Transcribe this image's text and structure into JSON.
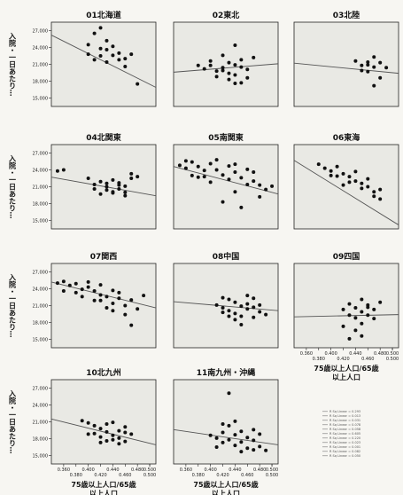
{
  "chart_data": {
    "type": "scatter",
    "layout": "small-multiples 3 columns x 4 rows",
    "ylabel": "入院・一日あたり…",
    "xlabel": [
      "75歳以上人口/65歳",
      "以上人口"
    ],
    "x_ticks_a": [
      "0.360",
      "0.400",
      "0.440",
      "0.480",
      "0.500"
    ],
    "x_ticks_b": [
      "0.380",
      "0.420",
      "0.460",
      "0.500"
    ],
    "y_ticks": [
      "27,000",
      "24,000",
      "21,000",
      "18,000",
      "15,000"
    ],
    "ylim": [
      13500,
      28500
    ],
    "xlim": [
      0.34,
      0.51
    ],
    "legend_lines": [
      "R Sq Linear = 0.293",
      "R Sq Linear = 0.013",
      "R Sq Linear = 0.031",
      "R Sq Linear = 0.078",
      "R Sq Linear = 0.058",
      "R Sq Linear = 0.605",
      "R Sq Linear = 0.220",
      "R Sq Linear = 0.023",
      "R Sq Linear = 0.001",
      "R Sq Linear = 0.082",
      "R Sq Linear = 0.050"
    ],
    "panels": [
      {
        "title": "01北海道",
        "line": [
          [
            0.34,
            26200
          ],
          [
            0.51,
            16900
          ]
        ],
        "points": [
          [
            0.4,
            24500
          ],
          [
            0.41,
            26500
          ],
          [
            0.42,
            27500
          ],
          [
            0.43,
            25200
          ],
          [
            0.4,
            22800
          ],
          [
            0.42,
            23800
          ],
          [
            0.44,
            22600
          ],
          [
            0.45,
            23000
          ],
          [
            0.43,
            21400
          ],
          [
            0.45,
            21800
          ],
          [
            0.46,
            20600
          ],
          [
            0.42,
            22500
          ],
          [
            0.44,
            24200
          ],
          [
            0.47,
            22800
          ],
          [
            0.41,
            21800
          ],
          [
            0.48,
            17500
          ],
          [
            0.46,
            22000
          ],
          [
            0.43,
            23600
          ]
        ]
      },
      {
        "title": "02東北",
        "line": [
          [
            0.34,
            19600
          ],
          [
            0.51,
            21100
          ]
        ],
        "points": [
          [
            0.38,
            20800
          ],
          [
            0.39,
            20200
          ],
          [
            0.4,
            21600
          ],
          [
            0.41,
            19800
          ],
          [
            0.42,
            20400
          ],
          [
            0.43,
            19400
          ],
          [
            0.44,
            20900
          ],
          [
            0.45,
            21800
          ],
          [
            0.42,
            22600
          ],
          [
            0.41,
            18800
          ],
          [
            0.43,
            18300
          ],
          [
            0.44,
            19100
          ],
          [
            0.46,
            20100
          ],
          [
            0.45,
            17700
          ],
          [
            0.44,
            17600
          ],
          [
            0.43,
            21300
          ],
          [
            0.47,
            22200
          ],
          [
            0.42,
            19900
          ],
          [
            0.46,
            18600
          ],
          [
            0.44,
            24400
          ],
          [
            0.4,
            20800
          ],
          [
            0.45,
            20500
          ]
        ]
      },
      {
        "title": "03北陸",
        "line": [
          [
            0.34,
            21200
          ],
          [
            0.51,
            19400
          ]
        ],
        "points": [
          [
            0.44,
            21600
          ],
          [
            0.45,
            20800
          ],
          [
            0.46,
            21400
          ],
          [
            0.47,
            20500
          ],
          [
            0.46,
            19700
          ],
          [
            0.48,
            21300
          ],
          [
            0.47,
            22300
          ],
          [
            0.45,
            19900
          ],
          [
            0.49,
            20400
          ],
          [
            0.48,
            18600
          ],
          [
            0.47,
            17200
          ],
          [
            0.46,
            20900
          ]
        ]
      },
      {
        "title": "04北関東",
        "line": [
          [
            0.34,
            22700
          ],
          [
            0.51,
            19400
          ]
        ],
        "points": [
          [
            0.35,
            23800
          ],
          [
            0.36,
            24000
          ],
          [
            0.4,
            22500
          ],
          [
            0.41,
            21400
          ],
          [
            0.42,
            21900
          ],
          [
            0.43,
            20400
          ],
          [
            0.43,
            21000
          ],
          [
            0.44,
            22200
          ],
          [
            0.44,
            20100
          ],
          [
            0.45,
            20600
          ],
          [
            0.45,
            21700
          ],
          [
            0.46,
            19400
          ],
          [
            0.46,
            21100
          ],
          [
            0.47,
            22500
          ],
          [
            0.48,
            22800
          ],
          [
            0.46,
            20000
          ],
          [
            0.44,
            19900
          ],
          [
            0.43,
            21600
          ],
          [
            0.47,
            23300
          ],
          [
            0.41,
            20600
          ],
          [
            0.42,
            19700
          ],
          [
            0.45,
            21300
          ]
        ]
      },
      {
        "title": "05南関東",
        "line": [
          [
            0.34,
            24600
          ],
          [
            0.51,
            19700
          ]
        ],
        "points": [
          [
            0.35,
            24800
          ],
          [
            0.36,
            24300
          ],
          [
            0.37,
            25400
          ],
          [
            0.38,
            24600
          ],
          [
            0.39,
            23900
          ],
          [
            0.4,
            25100
          ],
          [
            0.41,
            24000
          ],
          [
            0.42,
            23100
          ],
          [
            0.43,
            22300
          ],
          [
            0.44,
            23600
          ],
          [
            0.45,
            22600
          ],
          [
            0.46,
            24100
          ],
          [
            0.47,
            22000
          ],
          [
            0.48,
            21300
          ],
          [
            0.48,
            19200
          ],
          [
            0.49,
            20500
          ],
          [
            0.44,
            20100
          ],
          [
            0.42,
            18300
          ],
          [
            0.4,
            21800
          ],
          [
            0.38,
            22700
          ],
          [
            0.45,
            17300
          ],
          [
            0.47,
            23600
          ],
          [
            0.36,
            25600
          ],
          [
            0.41,
            25800
          ],
          [
            0.43,
            24700
          ],
          [
            0.39,
            22800
          ],
          [
            0.46,
            21400
          ],
          [
            0.5,
            21100
          ],
          [
            0.37,
            23000
          ],
          [
            0.44,
            25000
          ]
        ]
      },
      {
        "title": "06東海",
        "line": [
          [
            0.34,
            25700
          ],
          [
            0.51,
            14200
          ]
        ],
        "points": [
          [
            0.38,
            25000
          ],
          [
            0.39,
            24300
          ],
          [
            0.4,
            23800
          ],
          [
            0.41,
            24600
          ],
          [
            0.42,
            23300
          ],
          [
            0.43,
            22800
          ],
          [
            0.43,
            21800
          ],
          [
            0.44,
            22000
          ],
          [
            0.45,
            21600
          ],
          [
            0.45,
            20700
          ],
          [
            0.46,
            21000
          ],
          [
            0.47,
            20100
          ],
          [
            0.47,
            19300
          ],
          [
            0.48,
            18800
          ],
          [
            0.41,
            22900
          ],
          [
            0.44,
            23700
          ],
          [
            0.42,
            21300
          ],
          [
            0.46,
            22400
          ],
          [
            0.48,
            20500
          ],
          [
            0.4,
            23000
          ]
        ]
      },
      {
        "title": "07関西",
        "line": [
          [
            0.34,
            25200
          ],
          [
            0.51,
            20600
          ]
        ],
        "points": [
          [
            0.35,
            25000
          ],
          [
            0.36,
            25300
          ],
          [
            0.37,
            24600
          ],
          [
            0.38,
            24900
          ],
          [
            0.39,
            23900
          ],
          [
            0.4,
            24300
          ],
          [
            0.41,
            23600
          ],
          [
            0.42,
            22900
          ],
          [
            0.42,
            21900
          ],
          [
            0.43,
            22600
          ],
          [
            0.44,
            21400
          ],
          [
            0.44,
            20100
          ],
          [
            0.45,
            22300
          ],
          [
            0.46,
            21000
          ],
          [
            0.46,
            19400
          ],
          [
            0.47,
            22000
          ],
          [
            0.48,
            20400
          ],
          [
            0.47,
            17500
          ],
          [
            0.43,
            20600
          ],
          [
            0.41,
            21900
          ],
          [
            0.39,
            22600
          ],
          [
            0.38,
            23300
          ],
          [
            0.45,
            23300
          ],
          [
            0.4,
            25200
          ],
          [
            0.36,
            23600
          ],
          [
            0.49,
            22800
          ],
          [
            0.44,
            23700
          ],
          [
            0.42,
            24700
          ]
        ]
      },
      {
        "title": "08中国",
        "line": [
          [
            0.34,
            21700
          ],
          [
            0.51,
            20100
          ]
        ],
        "points": [
          [
            0.41,
            21100
          ],
          [
            0.42,
            20600
          ],
          [
            0.43,
            22100
          ],
          [
            0.43,
            20100
          ],
          [
            0.44,
            19600
          ],
          [
            0.44,
            21600
          ],
          [
            0.45,
            20900
          ],
          [
            0.45,
            19100
          ],
          [
            0.46,
            20400
          ],
          [
            0.46,
            21300
          ],
          [
            0.47,
            18900
          ],
          [
            0.47,
            22300
          ],
          [
            0.48,
            19900
          ],
          [
            0.48,
            21100
          ],
          [
            0.44,
            18500
          ],
          [
            0.42,
            22400
          ],
          [
            0.45,
            17600
          ],
          [
            0.46,
            22800
          ],
          [
            0.43,
            19100
          ],
          [
            0.47,
            20700
          ],
          [
            0.49,
            19400
          ],
          [
            0.42,
            19800
          ]
        ]
      },
      {
        "title": "09四国",
        "line": [
          [
            0.34,
            19000
          ],
          [
            0.51,
            19400
          ]
        ],
        "points": [
          [
            0.42,
            20300
          ],
          [
            0.43,
            19300
          ],
          [
            0.43,
            21300
          ],
          [
            0.44,
            18800
          ],
          [
            0.44,
            20600
          ],
          [
            0.45,
            19900
          ],
          [
            0.45,
            17800
          ],
          [
            0.46,
            21100
          ],
          [
            0.46,
            19300
          ],
          [
            0.47,
            20300
          ],
          [
            0.44,
            16600
          ],
          [
            0.43,
            15100
          ],
          [
            0.45,
            15600
          ],
          [
            0.47,
            18700
          ],
          [
            0.48,
            21600
          ],
          [
            0.45,
            22100
          ],
          [
            0.42,
            17300
          ],
          [
            0.46,
            20700
          ]
        ]
      },
      {
        "title": "10北九州",
        "line": [
          [
            0.34,
            21500
          ],
          [
            0.51,
            16900
          ]
        ],
        "points": [
          [
            0.39,
            21200
          ],
          [
            0.4,
            20800
          ],
          [
            0.41,
            18900
          ],
          [
            0.42,
            19800
          ],
          [
            0.42,
            18300
          ],
          [
            0.43,
            20600
          ],
          [
            0.43,
            19200
          ],
          [
            0.44,
            18600
          ],
          [
            0.44,
            17800
          ],
          [
            0.45,
            19400
          ],
          [
            0.45,
            18100
          ],
          [
            0.46,
            20100
          ],
          [
            0.46,
            17500
          ],
          [
            0.47,
            18800
          ],
          [
            0.41,
            20300
          ],
          [
            0.43,
            17600
          ],
          [
            0.44,
            20900
          ],
          [
            0.45,
            17100
          ],
          [
            0.42,
            17300
          ],
          [
            0.46,
            19100
          ],
          [
            0.4,
            18800
          ]
        ]
      },
      {
        "title": "11南九州・沖縄",
        "line": [
          [
            0.34,
            19600
          ],
          [
            0.51,
            16900
          ]
        ],
        "points": [
          [
            0.4,
            18600
          ],
          [
            0.41,
            18100
          ],
          [
            0.42,
            17300
          ],
          [
            0.42,
            19100
          ],
          [
            0.43,
            20300
          ],
          [
            0.43,
            17800
          ],
          [
            0.44,
            18700
          ],
          [
            0.44,
            16800
          ],
          [
            0.45,
            19300
          ],
          [
            0.45,
            17400
          ],
          [
            0.46,
            16300
          ],
          [
            0.46,
            18200
          ],
          [
            0.47,
            17700
          ],
          [
            0.47,
            19600
          ],
          [
            0.48,
            16600
          ],
          [
            0.48,
            18800
          ],
          [
            0.43,
            26100
          ],
          [
            0.44,
            21100
          ],
          [
            0.49,
            15900
          ],
          [
            0.45,
            15700
          ],
          [
            0.41,
            16500
          ],
          [
            0.42,
            20600
          ],
          [
            0.47,
            16000
          ]
        ]
      }
    ]
  }
}
